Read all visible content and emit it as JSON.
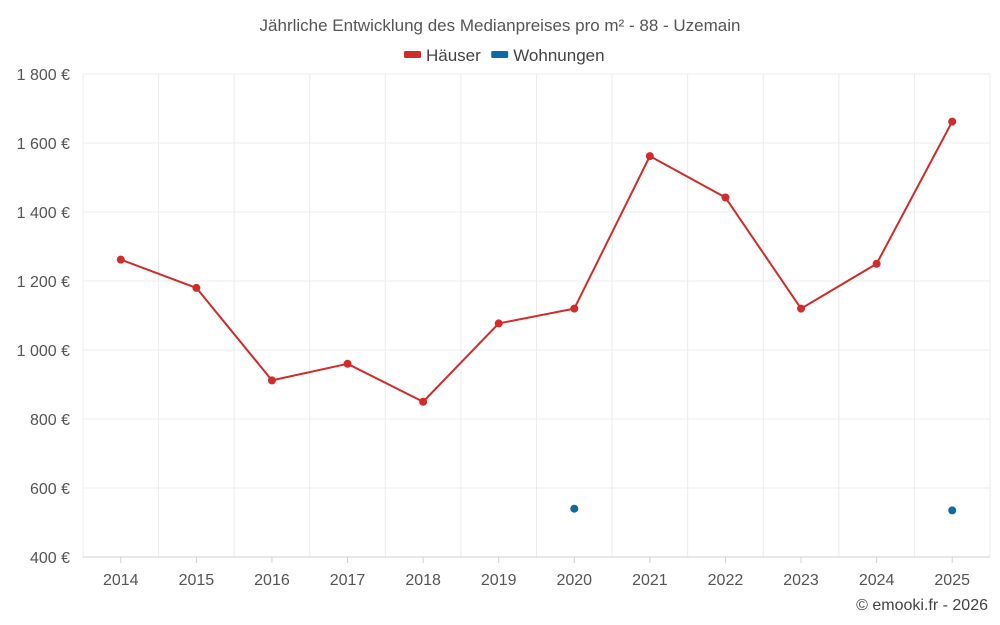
{
  "chart_data": {
    "type": "line",
    "title": "Jährliche Entwicklung des Medianpreises pro m² - 88 - Uzemain",
    "categories": [
      "2014",
      "2015",
      "2016",
      "2017",
      "2018",
      "2019",
      "2020",
      "2021",
      "2022",
      "2023",
      "2024",
      "2025"
    ],
    "series": [
      {
        "name": "Häuser",
        "color": "#d32a2a",
        "values": [
          1262,
          1180,
          912,
          960,
          850,
          1077,
          1120,
          1562,
          1442,
          1120,
          1250,
          1662
        ]
      },
      {
        "name": "Wohnungen",
        "color": "#0e6aa6",
        "values": [
          null,
          null,
          null,
          null,
          null,
          null,
          540,
          null,
          null,
          null,
          null,
          535
        ]
      }
    ],
    "ylim": [
      400,
      1800
    ],
    "y_ticks": [
      400,
      600,
      800,
      1000,
      1200,
      1400,
      1600,
      1800
    ],
    "y_tick_labels": [
      "400 €",
      "600 €",
      "800 €",
      "1 000 €",
      "1 200 €",
      "1 400 €",
      "1 600 €",
      "1 800 €"
    ],
    "xlabel": "",
    "ylabel": "",
    "grid": true,
    "legend_position": "top-center"
  },
  "credit": "© emooki.fr - 2026"
}
